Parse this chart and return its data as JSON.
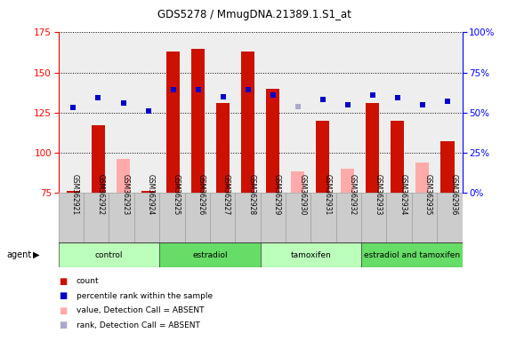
{
  "title": "GDS5278 / MmugDNA.21389.1.S1_at",
  "samples": [
    "GSM362921",
    "GSM362922",
    "GSM362923",
    "GSM362924",
    "GSM362925",
    "GSM362926",
    "GSM362927",
    "GSM362928",
    "GSM362929",
    "GSM362930",
    "GSM362931",
    "GSM362932",
    "GSM362933",
    "GSM362934",
    "GSM362935",
    "GSM362936"
  ],
  "bar_values": [
    76,
    117,
    96,
    76,
    163,
    165,
    131,
    163,
    140,
    88,
    120,
    90,
    131,
    120,
    94,
    107
  ],
  "bar_absent": [
    false,
    false,
    true,
    false,
    false,
    false,
    false,
    false,
    false,
    true,
    false,
    true,
    false,
    false,
    true,
    false
  ],
  "rank_values": [
    128,
    134,
    131,
    126,
    139,
    139,
    135,
    139,
    136,
    129,
    133,
    130,
    136,
    134,
    130,
    132
  ],
  "rank_absent": [
    false,
    false,
    false,
    false,
    false,
    false,
    false,
    false,
    false,
    true,
    false,
    false,
    false,
    false,
    false,
    false
  ],
  "groups": [
    {
      "label": "control",
      "start": 0,
      "end": 4
    },
    {
      "label": "estradiol",
      "start": 4,
      "end": 8
    },
    {
      "label": "tamoxifen",
      "start": 8,
      "end": 12
    },
    {
      "label": "estradiol and tamoxifen",
      "start": 12,
      "end": 16
    }
  ],
  "group_colors": [
    "#bbffbb",
    "#66dd66",
    "#bbffbb",
    "#66dd66"
  ],
  "ylim_left": [
    75,
    175
  ],
  "yticks_left": [
    75,
    100,
    125,
    150,
    175
  ],
  "ylim_right": [
    0,
    100
  ],
  "yticks_right": [
    0,
    25,
    50,
    75,
    100
  ],
  "bar_color_present": "#cc1100",
  "bar_color_absent": "#ffaaaa",
  "rank_color_present": "#0000cc",
  "rank_color_absent": "#aaaacc",
  "bg_plot": "#eeeeee",
  "bg_tick_area": "#cccccc",
  "agent_label": "agent"
}
